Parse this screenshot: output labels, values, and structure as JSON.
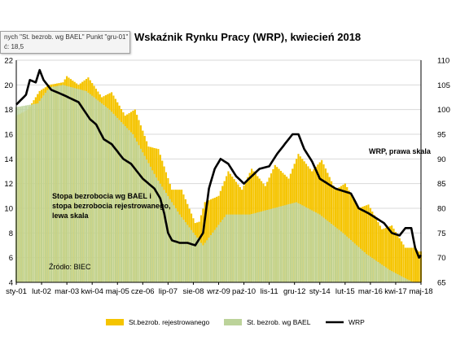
{
  "tooltip": {
    "line1": "nych \"St. bezrob. wg BAEL\" Punkt \"gru-01\"",
    "line2": "ć: 18,5"
  },
  "annotations": {
    "wrp_label": "WRP, prawa skala",
    "left_label_1": "Stopa bezrobocia wg BAEL i",
    "left_label_2": "stopa bezrobocia rejestrowanego,",
    "left_label_3": "lewa skala",
    "source": "Źródło: BIEC"
  },
  "colors": {
    "registered": "#f5c400",
    "bael": "#bcd39a",
    "wrp": "#000000",
    "grid": "#d9d9d9"
  },
  "chart_data": {
    "type": "bar",
    "title": "Wskaźnik Rynku Pracy (WRP), kwiecień 2018",
    "left_axis": {
      "ylim": [
        4,
        22
      ],
      "ticks": [
        4,
        6,
        8,
        10,
        12,
        14,
        16,
        18,
        20,
        22
      ]
    },
    "right_axis": {
      "ylim": [
        65,
        110
      ],
      "ticks": [
        65,
        70,
        75,
        80,
        85,
        90,
        95,
        100,
        105,
        110
      ]
    },
    "x_tick_labels": [
      "sty-01",
      "lut-02",
      "mar-03",
      "kwi-04",
      "maj-05",
      "cze-06",
      "lip-07",
      "sie-08",
      "wrz-09",
      "paź-10",
      "lis-11",
      "gru-12",
      "sty-14",
      "lut-15",
      "mar-16",
      "kwi-17",
      "maj-18"
    ],
    "x_range_months": [
      "2001-01",
      "2018-05"
    ],
    "legend_position": "bottom",
    "series": [
      {
        "name": "St.bezrob. rejestrowanego",
        "type": "bar",
        "axis": "left",
        "points": [
          [
            "2001-01",
            17.5
          ],
          [
            "2001-07",
            18
          ],
          [
            "2002-01",
            19.5
          ],
          [
            "2002-06",
            20
          ],
          [
            "2003-01",
            20.2
          ],
          [
            "2003-03",
            20.7
          ],
          [
            "2003-09",
            20.0
          ],
          [
            "2004-02",
            20.6
          ],
          [
            "2004-09",
            19.0
          ],
          [
            "2005-02",
            19.4
          ],
          [
            "2005-09",
            17.5
          ],
          [
            "2006-02",
            18.0
          ],
          [
            "2006-09",
            15.0
          ],
          [
            "2007-02",
            14.8
          ],
          [
            "2007-09",
            11.5
          ],
          [
            "2008-02",
            11.5
          ],
          [
            "2008-09",
            8.8
          ],
          [
            "2008-11",
            8.9
          ],
          [
            "2009-02",
            10.5
          ],
          [
            "2009-09",
            11.0
          ],
          [
            "2010-02",
            13.0
          ],
          [
            "2010-09",
            11.5
          ],
          [
            "2011-02",
            13.2
          ],
          [
            "2011-09",
            11.8
          ],
          [
            "2012-02",
            13.5
          ],
          [
            "2012-09",
            12.4
          ],
          [
            "2013-02",
            14.4
          ],
          [
            "2013-09",
            13.0
          ],
          [
            "2014-02",
            13.9
          ],
          [
            "2014-09",
            11.5
          ],
          [
            "2015-02",
            12.0
          ],
          [
            "2015-09",
            10.0
          ],
          [
            "2016-02",
            10.3
          ],
          [
            "2016-09",
            8.3
          ],
          [
            "2017-02",
            8.6
          ],
          [
            "2017-09",
            6.8
          ],
          [
            "2018-01",
            6.8
          ],
          [
            "2018-04",
            6.5
          ]
        ]
      },
      {
        "name": "St. bezrob. wg BAEL",
        "type": "bar",
        "axis": "left",
        "points": [
          [
            "2001-01",
            18.2
          ],
          [
            "2001-12",
            18.5
          ],
          [
            "2002-06",
            19.8
          ],
          [
            "2003-01",
            20.0
          ],
          [
            "2004-01",
            19.5
          ],
          [
            "2005-01",
            18.0
          ],
          [
            "2006-01",
            16.0
          ],
          [
            "2007-01",
            12.5
          ],
          [
            "2008-01",
            9.5
          ],
          [
            "2009-01",
            7.0
          ],
          [
            "2010-01",
            9.5
          ],
          [
            "2011-01",
            9.5
          ],
          [
            "2012-01",
            10.0
          ],
          [
            "2013-01",
            10.5
          ],
          [
            "2014-01",
            9.5
          ],
          [
            "2015-01",
            8.0
          ],
          [
            "2016-01",
            6.3
          ],
          [
            "2017-01",
            5.0
          ],
          [
            "2018-01",
            4.0
          ],
          [
            "2018-04",
            4.0
          ]
        ]
      },
      {
        "name": "WRP",
        "type": "line",
        "axis": "right",
        "points": [
          [
            "2001-01",
            101
          ],
          [
            "2001-06",
            103
          ],
          [
            "2001-08",
            106
          ],
          [
            "2001-11",
            105.5
          ],
          [
            "2002-01",
            108
          ],
          [
            "2002-03",
            106
          ],
          [
            "2002-07",
            104
          ],
          [
            "2003-01",
            103
          ],
          [
            "2003-09",
            101.5
          ],
          [
            "2004-03",
            98
          ],
          [
            "2004-06",
            97
          ],
          [
            "2004-10",
            94
          ],
          [
            "2005-02",
            93
          ],
          [
            "2005-08",
            90
          ],
          [
            "2005-12",
            89
          ],
          [
            "2006-06",
            86
          ],
          [
            "2006-12",
            84
          ],
          [
            "2007-03",
            82
          ],
          [
            "2007-05",
            79
          ],
          [
            "2007-07",
            75
          ],
          [
            "2007-09",
            73.5
          ],
          [
            "2008-01",
            73
          ],
          [
            "2008-05",
            73
          ],
          [
            "2008-09",
            72.5
          ],
          [
            "2009-01",
            75
          ],
          [
            "2009-04",
            84
          ],
          [
            "2009-07",
            88
          ],
          [
            "2009-10",
            90
          ],
          [
            "2010-02",
            89
          ],
          [
            "2010-06",
            86.5
          ],
          [
            "2010-10",
            85
          ],
          [
            "2011-02",
            86.5
          ],
          [
            "2011-06",
            88
          ],
          [
            "2011-11",
            88.5
          ],
          [
            "2012-03",
            91
          ],
          [
            "2012-07",
            93
          ],
          [
            "2012-11",
            95
          ],
          [
            "2013-02",
            95
          ],
          [
            "2013-05",
            92
          ],
          [
            "2013-09",
            89.5
          ],
          [
            "2014-01",
            86
          ],
          [
            "2014-05",
            85
          ],
          [
            "2014-09",
            84
          ],
          [
            "2015-01",
            83.5
          ],
          [
            "2015-05",
            83
          ],
          [
            "2015-09",
            80
          ],
          [
            "2016-02",
            79
          ],
          [
            "2016-06",
            78
          ],
          [
            "2016-10",
            77
          ],
          [
            "2017-02",
            75
          ],
          [
            "2017-06",
            74.5
          ],
          [
            "2017-09",
            76
          ],
          [
            "2017-12",
            76
          ],
          [
            "2018-02",
            72
          ],
          [
            "2018-04",
            70
          ],
          [
            "2018-05",
            70.5
          ]
        ]
      }
    ]
  }
}
